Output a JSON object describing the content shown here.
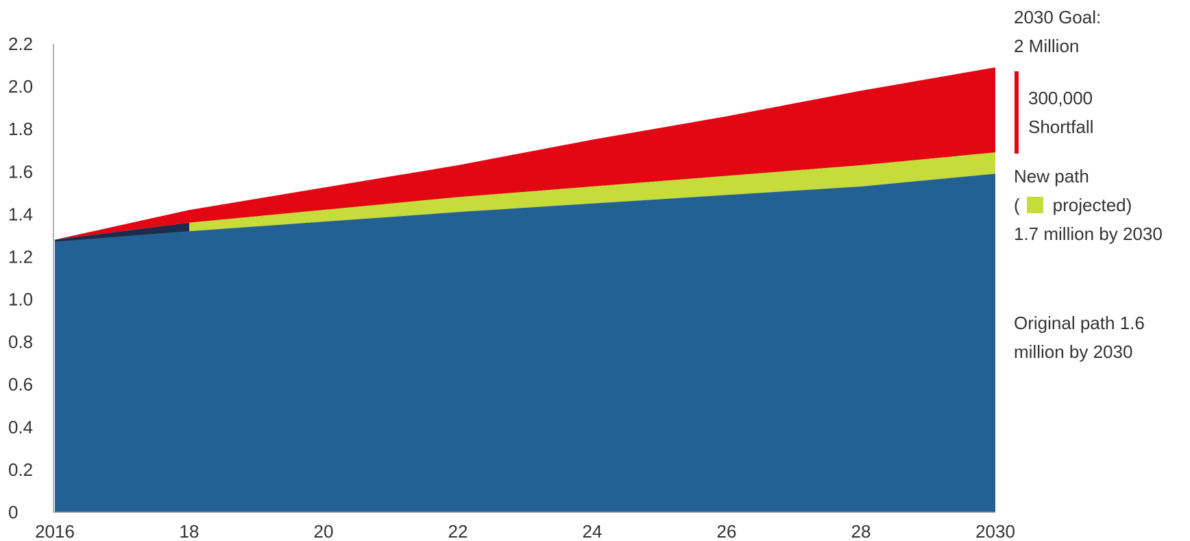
{
  "chart_data": {
    "type": "area",
    "x": [
      2016,
      2018,
      2022,
      2024,
      2026,
      2028,
      2030
    ],
    "xticks": [
      "2016",
      "18",
      "20",
      "22",
      "24",
      "26",
      "28",
      "2030"
    ],
    "xtick_values": [
      2016,
      2018,
      2020,
      2022,
      2024,
      2026,
      2028,
      2030
    ],
    "yticks": [
      "0",
      "0.2",
      "0.4",
      "0.6",
      "0.8",
      "1.0",
      "1.2",
      "1.4",
      "1.6",
      "1.8",
      "2.0",
      "2.2"
    ],
    "ytick_values": [
      0,
      0.2,
      0.4,
      0.6,
      0.8,
      1.0,
      1.2,
      1.4,
      1.6,
      1.8,
      2.0,
      2.2
    ],
    "xlim": [
      2016,
      2030
    ],
    "ylim": [
      0,
      2.2
    ],
    "series": [
      {
        "key": "original",
        "values": [
          1.27,
          1.32,
          1.41,
          1.45,
          1.49,
          1.53,
          1.59
        ],
        "color": "#236093"
      },
      {
        "key": "new_path",
        "values": [
          1.28,
          1.36,
          1.48,
          1.53,
          1.58,
          1.63,
          1.69
        ],
        "color": "#c5dc3b"
      },
      {
        "key": "goal",
        "values": [
          1.28,
          1.42,
          1.63,
          1.75,
          1.86,
          1.98,
          2.09
        ],
        "color": "#e30613"
      }
    ],
    "historical": {
      "x": [
        2016,
        2018
      ],
      "values": [
        1.28,
        1.36
      ],
      "color": "#1d2c4c"
    }
  },
  "annotations": {
    "goal_line1": "2030 Goal:",
    "goal_line2": "2 Million",
    "shortfall_line1": "300,000",
    "shortfall_line2": "Shortfall",
    "newpath_line1": "New path",
    "newpath_open": "(",
    "newpath_projected": "projected)",
    "newpath_line3": "1.7 million by 2030",
    "original_line1": "Original path 1.6",
    "original_line2": "million by 2030"
  },
  "colors": {
    "original": "#236093",
    "new_path": "#c5dc3b",
    "goal": "#e30613",
    "historical": "#1d2c4c",
    "axis": "#999999"
  }
}
